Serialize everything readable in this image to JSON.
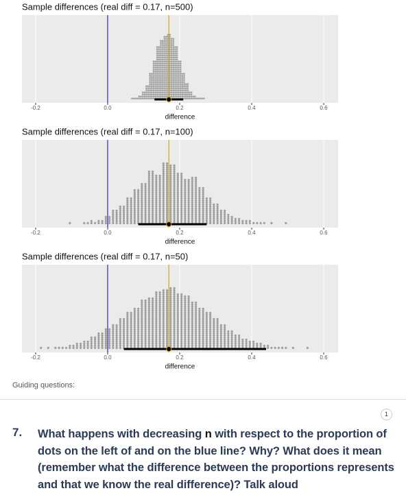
{
  "chart_data": [
    {
      "type": "dotplot",
      "title": "Sample differences (real diff = 0.17, n=500)",
      "xlabel": "difference",
      "xlim": [
        -0.238,
        0.64
      ],
      "xticks": [
        -0.2,
        {
          "value": 0,
          "label": "0.0"
        },
        0.2,
        0.4,
        0.6
      ],
      "grid": true,
      "x": [
        0.07,
        0.08,
        0.09,
        0.1,
        0.11,
        0.12,
        0.13,
        0.14,
        0.15,
        0.16,
        0.17,
        0.18,
        0.19,
        0.2,
        0.21,
        0.22,
        0.23,
        0.24,
        0.25,
        0.26,
        0.27
      ],
      "values": [
        2,
        2,
        4,
        8,
        14,
        26,
        38,
        52,
        58,
        62,
        64,
        60,
        52,
        38,
        26,
        16,
        8,
        4,
        2,
        2,
        1
      ],
      "color": "#9a9a9a",
      "reference_lines": [
        {
          "value": 0,
          "color": "#2b2bb0"
        },
        {
          "value": 0.17,
          "color": "#d9a21b"
        }
      ],
      "interval": {
        "lower": 0.13,
        "upper": 0.21,
        "point": 0.17
      }
    },
    {
      "type": "dotplot",
      "title": "Sample differences (real diff = 0.17, n=100)",
      "xlabel": "difference",
      "xlim": [
        -0.238,
        0.64
      ],
      "xticks": [
        -0.2,
        {
          "value": 0,
          "label": "0.0"
        },
        0.2,
        0.4,
        0.6
      ],
      "grid": true,
      "x": [
        -0.1,
        -0.08,
        -0.06,
        -0.04,
        -0.02,
        0.0,
        0.02,
        0.04,
        0.06,
        0.08,
        0.1,
        0.12,
        0.14,
        0.16,
        0.18,
        0.2,
        0.22,
        0.24,
        0.26,
        0.28,
        0.3,
        0.32,
        0.34,
        0.36,
        0.38,
        0.4,
        0.42,
        0.44,
        0.46,
        0.48,
        0.5
      ],
      "values": [
        1,
        0,
        2,
        3,
        4,
        8,
        14,
        18,
        26,
        34,
        40,
        52,
        48,
        60,
        58,
        50,
        44,
        46,
        36,
        26,
        20,
        14,
        9,
        6,
        4,
        3,
        2,
        1,
        1,
        0,
        1
      ],
      "color": "#9a9a9a",
      "reference_lines": [
        {
          "value": 0,
          "color": "#2b2bb0"
        },
        {
          "value": 0.17,
          "color": "#d9a21b"
        }
      ],
      "interval": {
        "lower": 0.085,
        "upper": 0.275,
        "point": 0.17
      }
    },
    {
      "type": "dotplot",
      "title": "Sample differences (real diff = 0.17, n=50)",
      "xlabel": "difference",
      "xlim": [
        -0.238,
        0.64
      ],
      "xticks": [
        -0.2,
        {
          "value": 0,
          "label": "0.0"
        },
        0.2,
        0.4,
        0.6
      ],
      "grid": true,
      "x": [
        -0.18,
        -0.16,
        -0.14,
        -0.12,
        -0.1,
        -0.08,
        -0.06,
        -0.04,
        -0.02,
        0.0,
        0.02,
        0.04,
        0.06,
        0.08,
        0.1,
        0.12,
        0.14,
        0.16,
        0.18,
        0.2,
        0.22,
        0.24,
        0.26,
        0.28,
        0.3,
        0.32,
        0.34,
        0.36,
        0.38,
        0.4,
        0.42,
        0.44,
        0.46,
        0.48,
        0.5,
        0.52,
        0.54,
        0.56
      ],
      "values": [
        1,
        1,
        2,
        2,
        4,
        6,
        8,
        12,
        16,
        20,
        24,
        30,
        36,
        40,
        48,
        50,
        56,
        58,
        60,
        54,
        52,
        46,
        40,
        36,
        30,
        24,
        18,
        14,
        10,
        8,
        6,
        4,
        2,
        2,
        1,
        1,
        0,
        1
      ],
      "color": "#9a9a9a",
      "reference_lines": [
        {
          "value": 0,
          "color": "#2b2bb0"
        },
        {
          "value": 0.17,
          "color": "#d9a21b"
        }
      ],
      "interval": {
        "lower": 0.045,
        "upper": 0.44,
        "point": 0.17
      }
    }
  ],
  "guiding_label": "Guiding questions:",
  "badge": "1",
  "question": {
    "number": "7.",
    "parts": [
      "What happens with decreasing ",
      "n",
      " with respect to the proportion of dots on the left of and on the blue line? Why? What does it mean (remember what the difference between the proportions represents and that we know the real difference)? Talk aloud"
    ]
  }
}
